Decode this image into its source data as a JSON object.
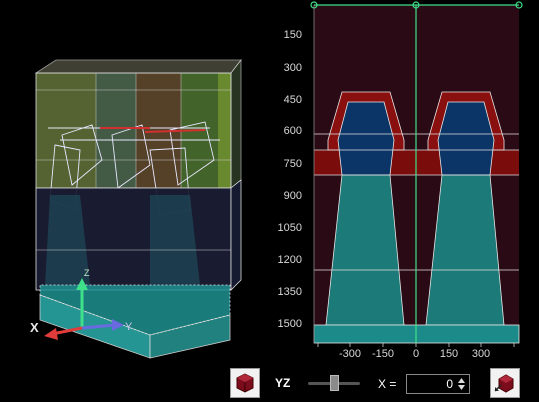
{
  "viewer": {
    "axes": {
      "x_label": "X",
      "y_label": "Y",
      "z_label": "Z"
    }
  },
  "section_view": {
    "y_ticks": [
      "150",
      "300",
      "450",
      "600",
      "750",
      "900",
      "1050",
      "1200",
      "1350",
      "1500"
    ],
    "x_ticks": [
      "-300",
      "-150",
      "0",
      "150",
      "300"
    ],
    "colors": {
      "dark_red": "#7a0c0c",
      "navy": "#0b3566",
      "teal": "#1c7a78",
      "background": "#2a0a14",
      "cursor": "#3ee08a"
    }
  },
  "toolbar": {
    "view_cube_button_icon": "view-cube-icon",
    "plane_label": "YZ",
    "slice_slider_level": 0.5,
    "x_label": "X =",
    "x_value": "0",
    "export_button_icon": "view-cube-export-icon"
  }
}
